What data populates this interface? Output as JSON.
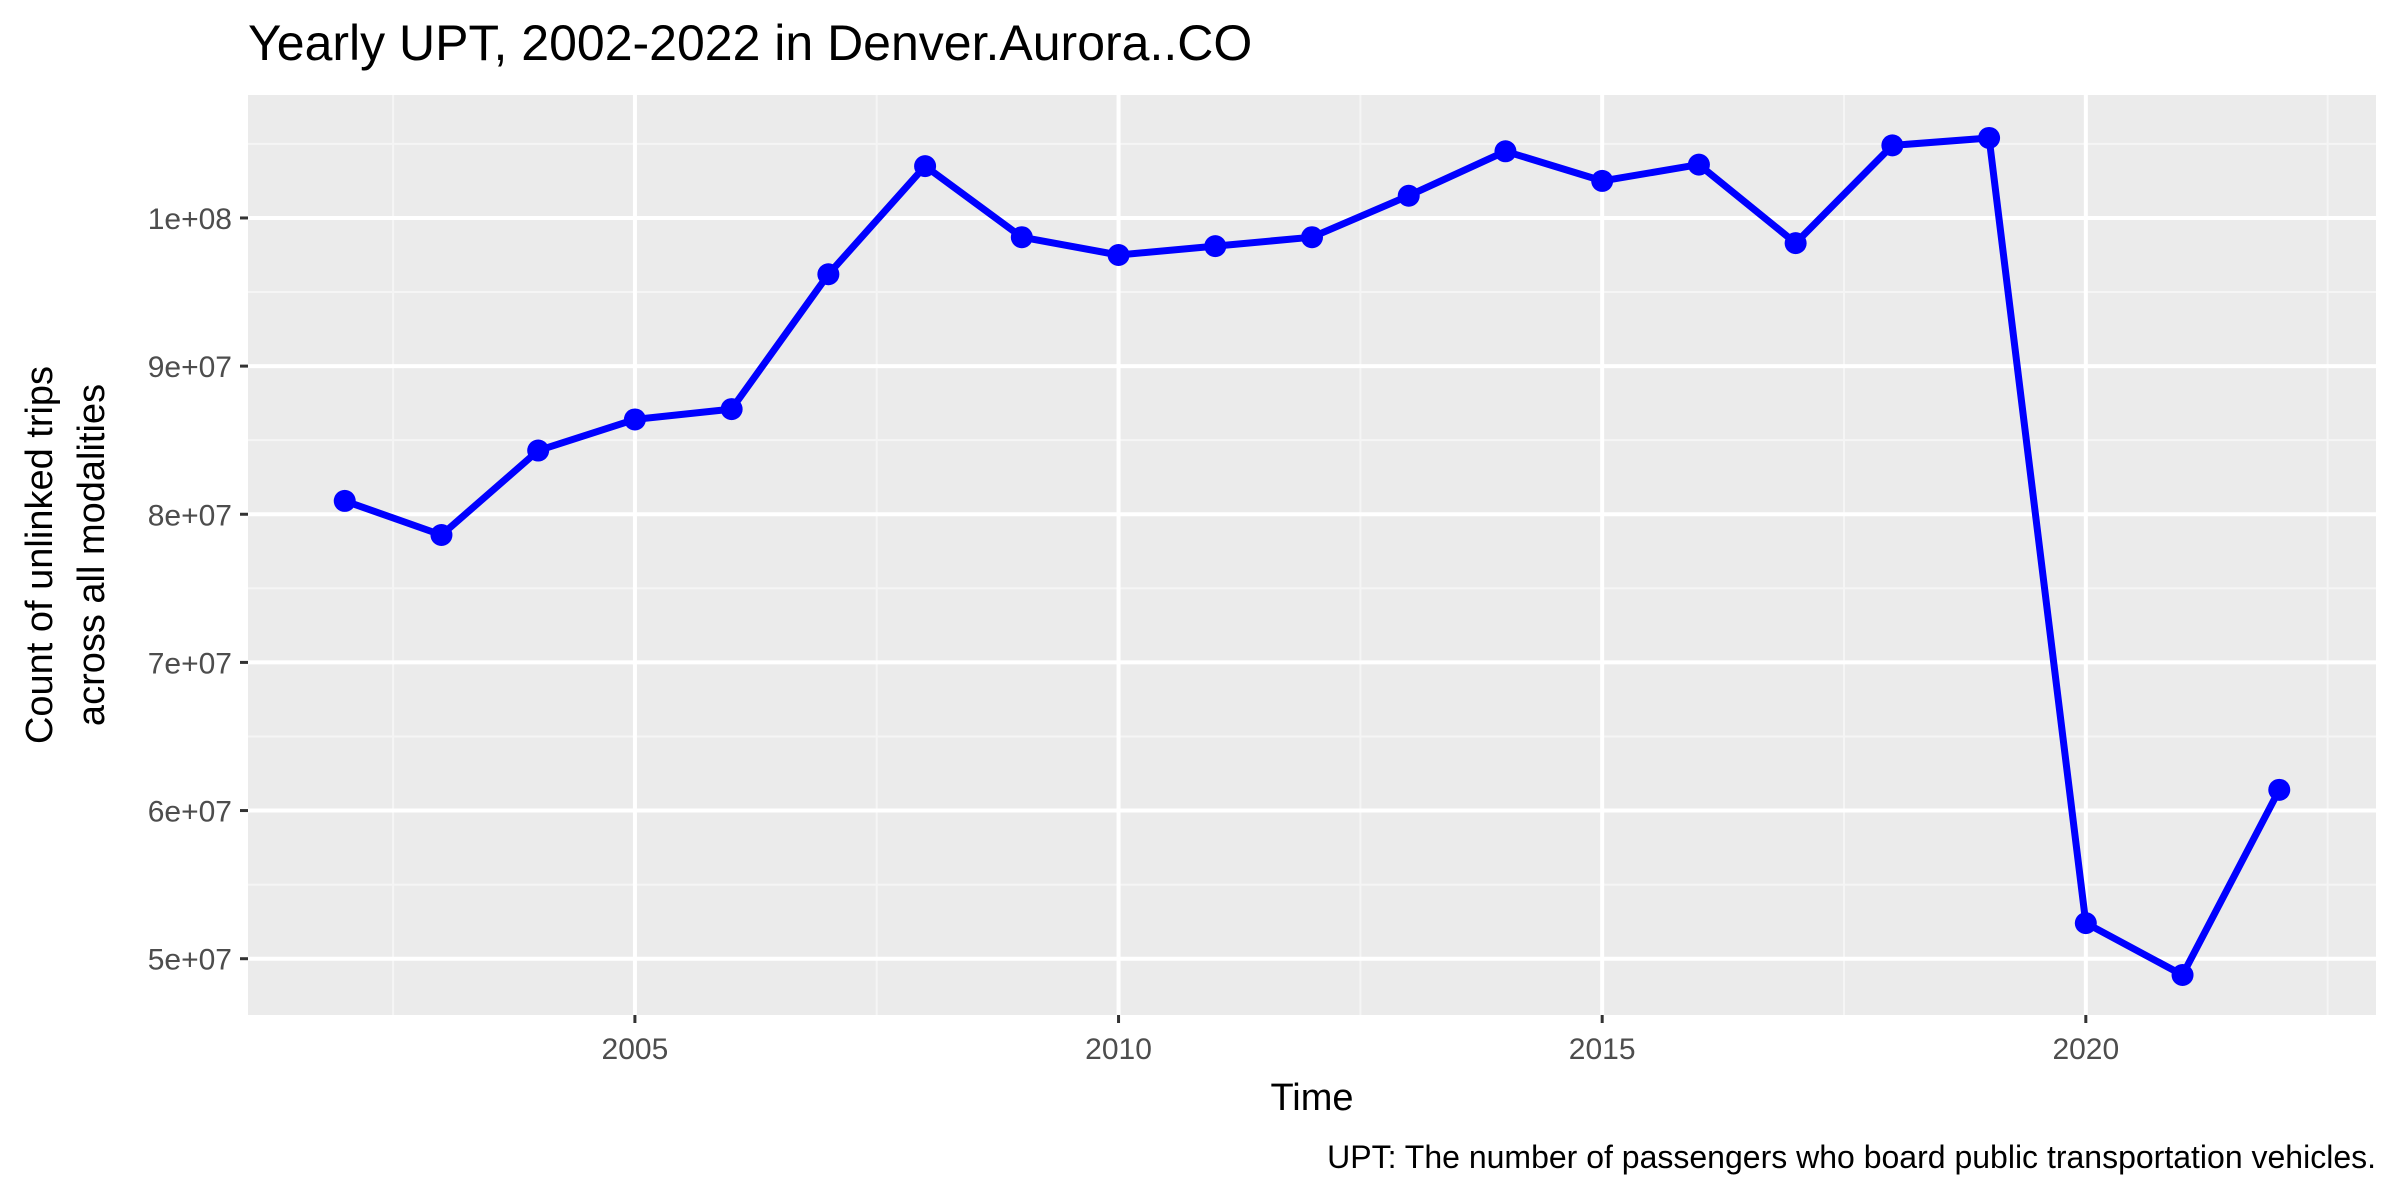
{
  "chart_data": {
    "type": "line",
    "title": "Yearly UPT, 2002-2022 in Denver.Aurora..CO",
    "xlabel": "Time",
    "ylabel": [
      "Count of unlinked trips",
      "across all modalities"
    ],
    "caption": "UPT: The number of passengers who board public transportation vehicles.",
    "x": [
      2002,
      2003,
      2004,
      2005,
      2006,
      2007,
      2008,
      2009,
      2010,
      2011,
      2012,
      2013,
      2014,
      2015,
      2016,
      2017,
      2018,
      2019,
      2020,
      2021,
      2022
    ],
    "series": [
      {
        "values": [
          80900000,
          78600000,
          84300000,
          86400000,
          87100000,
          96200000,
          103500000,
          98700000,
          97500000,
          98100000,
          98700000,
          101500000,
          104500000,
          102500000,
          103600000,
          98300000,
          104900000,
          105400000,
          52400000,
          48900000,
          61400000
        ]
      }
    ],
    "xlim": [
      2001,
      2023
    ],
    "ylim": [
      46200000,
      108300000
    ],
    "x_ticks": [
      2005,
      2010,
      2015,
      2020
    ],
    "x_tick_labels": [
      "2005",
      "2010",
      "2015",
      "2020"
    ],
    "y_ticks": [
      50000000,
      60000000,
      70000000,
      80000000,
      90000000,
      100000000
    ],
    "y_tick_labels": [
      "5e+07",
      "6e+07",
      "7e+07",
      "8e+07",
      "9e+07",
      "1e+08"
    ],
    "grid": true,
    "colors": {
      "line": "#0000ff",
      "panel": "#ebebeb",
      "grid_major": "#ffffff",
      "grid_minor": "#f5f5f5"
    }
  }
}
